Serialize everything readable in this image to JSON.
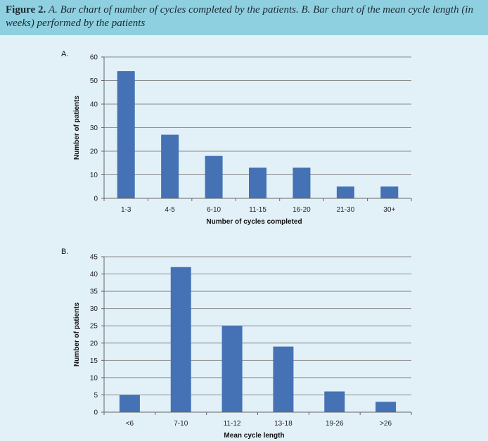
{
  "caption": {
    "label": "Figure 2.",
    "text": "A. Bar chart of number of cycles completed by the patients. B. Bar chart of the mean cycle length (in weeks) performed by the patients"
  },
  "colors": {
    "bar": "#4472b4",
    "grid": "#8a8a8a",
    "background": "#e2f0f8",
    "caption_bg": "#8fd0e0"
  },
  "chart_data": [
    {
      "panel": "A.",
      "type": "bar",
      "categories": [
        "1-3",
        "4-5",
        "6-10",
        "11-15",
        "16-20",
        "21-30",
        "30+"
      ],
      "values": [
        54,
        27,
        18,
        13,
        13,
        5,
        5
      ],
      "xlabel": "Number of cycles completed",
      "ylabel": "Number of patients",
      "ylim": [
        0,
        60
      ],
      "yticks": [
        0,
        10,
        20,
        30,
        40,
        50,
        60
      ],
      "grid": true
    },
    {
      "panel": "B.",
      "type": "bar",
      "categories": [
        "<6",
        "7-10",
        "11-12",
        "13-18",
        "19-26",
        ">26"
      ],
      "values": [
        5,
        42,
        25,
        19,
        6,
        3
      ],
      "xlabel": "Mean cycle length",
      "ylabel": "Number of patients",
      "ylim": [
        0,
        45
      ],
      "yticks": [
        0,
        5,
        10,
        15,
        20,
        25,
        30,
        35,
        40,
        45
      ],
      "grid": true
    }
  ]
}
